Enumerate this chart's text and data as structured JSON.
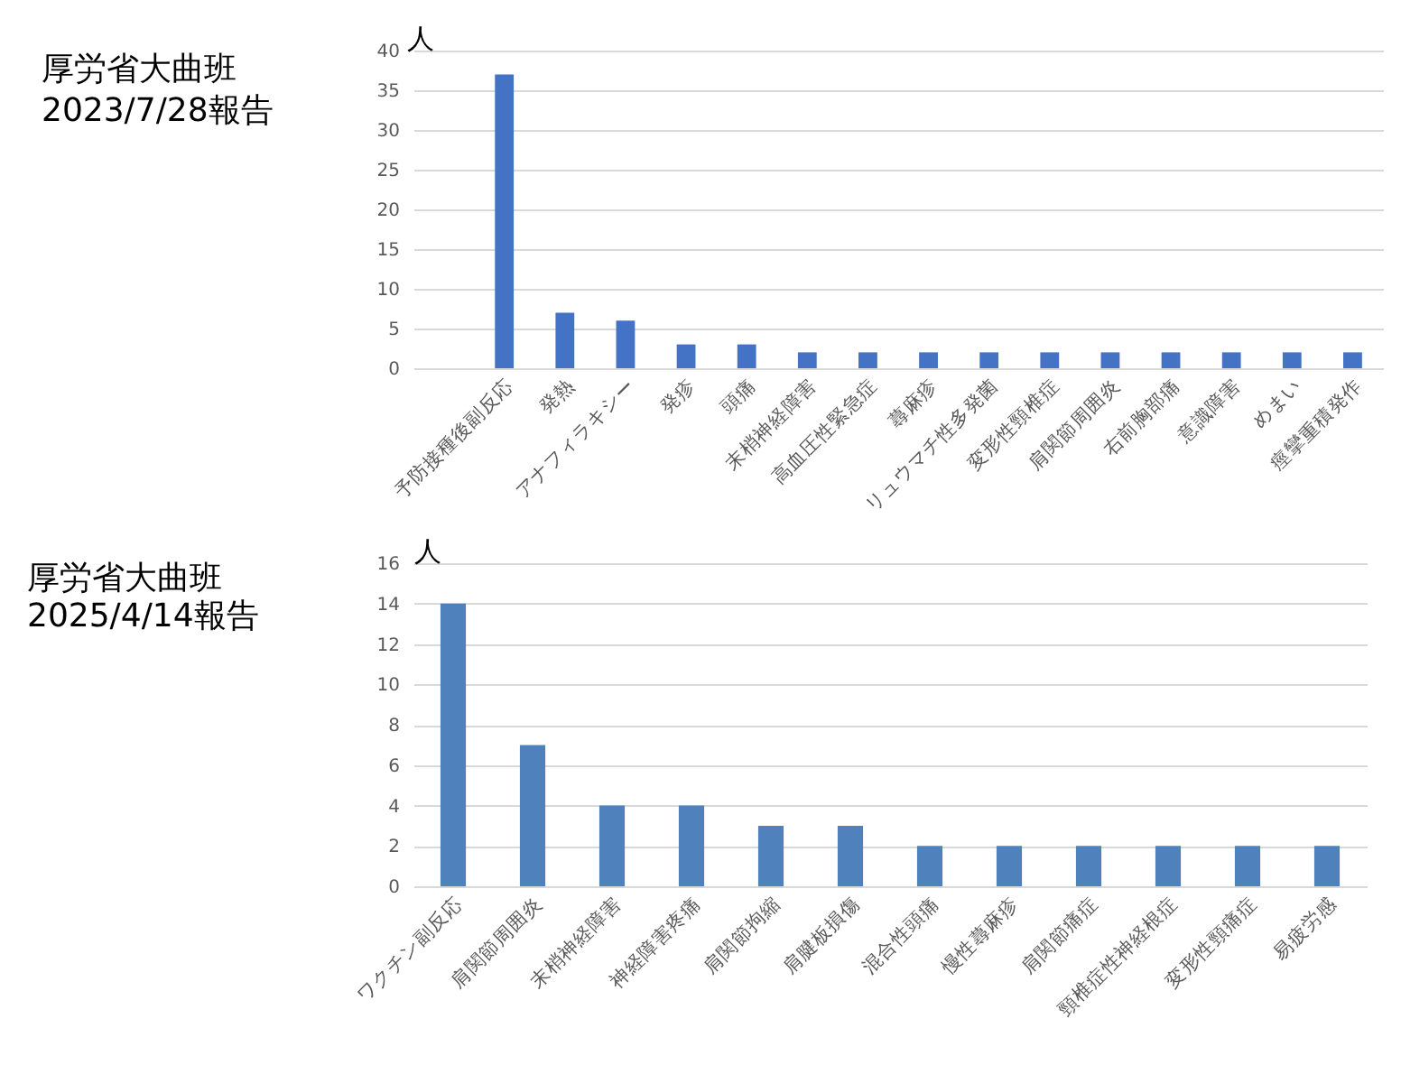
{
  "chart_data": [
    {
      "type": "bar",
      "title": "厚労省大曲班",
      "subtitle": "2023/7/28報告",
      "ylabel": "人",
      "categories": [
        null,
        "予防接種後副反応",
        "発熱",
        "アナフィラキシー",
        "発疹",
        "頭痛",
        "末梢神経障害",
        "高血圧性緊急症",
        "蕁麻疹",
        "リュウマチ性多発菌",
        "変形性頸椎症",
        "肩関節周囲炎",
        "右前胸部痛",
        "意識障害",
        "めまい",
        "痙攣重積発作"
      ],
      "values": [
        null,
        37,
        7,
        6,
        3,
        3,
        2,
        2,
        2,
        2,
        2,
        2,
        2,
        2,
        2,
        2
      ],
      "color": "#4472c4",
      "ylim": [
        0,
        40
      ],
      "yticks": [
        0,
        5,
        10,
        15,
        20,
        25,
        30,
        35,
        40
      ],
      "grid": "y"
    },
    {
      "type": "bar",
      "title": "厚労省大曲班",
      "subtitle": "2025/4/14報告",
      "ylabel": "人",
      "categories": [
        "ワクチン副反応",
        "肩関節周囲炎",
        "末梢神経障害",
        "神経障害疼痛",
        "肩関節拘縮",
        "肩腱板損傷",
        "混合性頭痛",
        "慢性蕁麻疹",
        "肩関節痛症",
        "頸椎症性神経根症",
        "変形性頸痛症",
        "易疲労感"
      ],
      "values": [
        14,
        7,
        4,
        4,
        3,
        3,
        2,
        2,
        2,
        2,
        2,
        2
      ],
      "color": "#4f81bd",
      "ylim": [
        0,
        16
      ],
      "yticks": [
        0,
        2,
        4,
        6,
        8,
        10,
        12,
        14,
        16
      ],
      "grid": "y"
    }
  ]
}
